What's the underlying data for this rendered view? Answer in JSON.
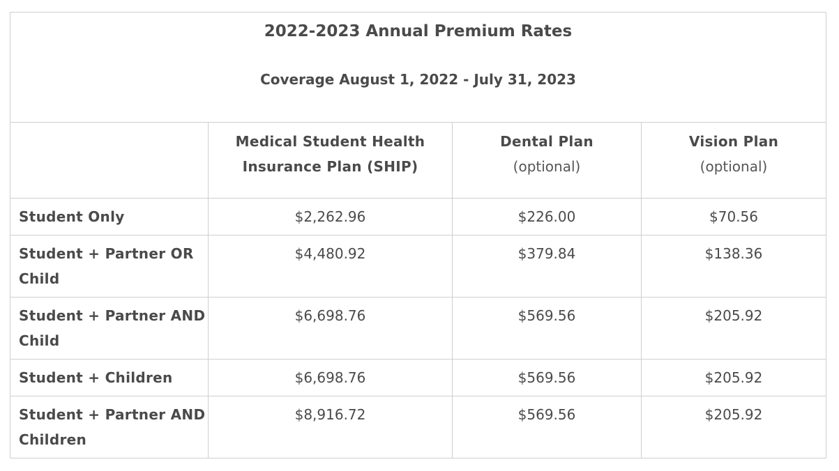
{
  "title": "2022-2023 Annual Premium Rates",
  "subtitle": "Coverage August 1, 2022 - July 31, 2023",
  "columns": [
    {
      "name_line1": "Medical Student Health",
      "name_line2": "Insurance Plan (SHIP)"
    },
    {
      "name_line1": "Dental Plan",
      "name_line2": "(optional)"
    },
    {
      "name_line1": "Vision Plan",
      "name_line2": "(optional)"
    }
  ],
  "rows": [
    {
      "label": "Student Only",
      "medical": "$2,262.96",
      "dental": "$226.00",
      "vision": "$70.56"
    },
    {
      "label": "Student + Partner OR Child",
      "medical": "$4,480.92",
      "dental": "$379.84",
      "vision": "$138.36"
    },
    {
      "label": "Student + Partner AND Child",
      "medical": "$6,698.76",
      "dental": "$569.56",
      "vision": "$205.92"
    },
    {
      "label": "Student + Children",
      "medical": "$6,698.76",
      "dental": "$569.56",
      "vision": "$205.92"
    },
    {
      "label": "Student + Partner AND Children",
      "medical": "$8,916.72",
      "dental": "$569.56",
      "vision": "$205.92"
    }
  ]
}
